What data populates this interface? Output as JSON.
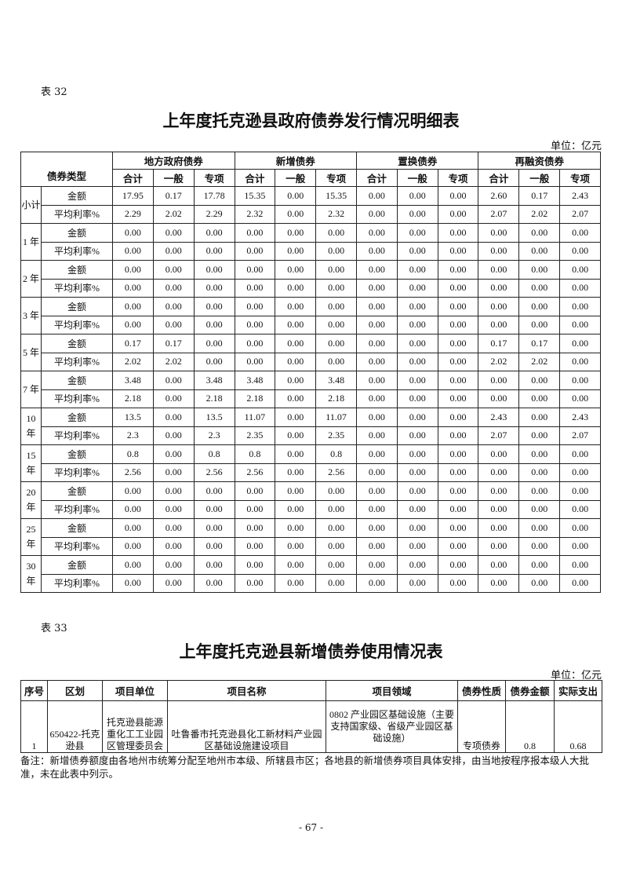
{
  "table32": {
    "label": "表 32",
    "title": "上年度托克逊县政府债券发行情况明细表",
    "unit": "单位：亿元",
    "corner": "债券类型",
    "groups": [
      "地方政府债券",
      "新增债券",
      "置换债券",
      "再融资债券"
    ],
    "subheaders": [
      "合计",
      "一般",
      "专项"
    ],
    "row_labels": [
      "金额",
      "平均利率%"
    ],
    "rows": [
      {
        "term": "小计",
        "amount": [
          "17.95",
          "0.17",
          "17.78",
          "15.35",
          "0.00",
          "15.35",
          "0.00",
          "0.00",
          "0.00",
          "2.60",
          "0.17",
          "2.43"
        ],
        "rate": [
          "2.29",
          "2.02",
          "2.29",
          "2.32",
          "0.00",
          "2.32",
          "0.00",
          "0.00",
          "0.00",
          "2.07",
          "2.02",
          "2.07"
        ]
      },
      {
        "term": "1 年",
        "amount": [
          "0.00",
          "0.00",
          "0.00",
          "0.00",
          "0.00",
          "0.00",
          "0.00",
          "0.00",
          "0.00",
          "0.00",
          "0.00",
          "0.00"
        ],
        "rate": [
          "0.00",
          "0.00",
          "0.00",
          "0.00",
          "0.00",
          "0.00",
          "0.00",
          "0.00",
          "0.00",
          "0.00",
          "0.00",
          "0.00"
        ]
      },
      {
        "term": "2 年",
        "amount": [
          "0.00",
          "0.00",
          "0.00",
          "0.00",
          "0.00",
          "0.00",
          "0.00",
          "0.00",
          "0.00",
          "0.00",
          "0.00",
          "0.00"
        ],
        "rate": [
          "0.00",
          "0.00",
          "0.00",
          "0.00",
          "0.00",
          "0.00",
          "0.00",
          "0.00",
          "0.00",
          "0.00",
          "0.00",
          "0.00"
        ]
      },
      {
        "term": "3 年",
        "amount": [
          "0.00",
          "0.00",
          "0.00",
          "0.00",
          "0.00",
          "0.00",
          "0.00",
          "0.00",
          "0.00",
          "0.00",
          "0.00",
          "0.00"
        ],
        "rate": [
          "0.00",
          "0.00",
          "0.00",
          "0.00",
          "0.00",
          "0.00",
          "0.00",
          "0.00",
          "0.00",
          "0.00",
          "0.00",
          "0.00"
        ]
      },
      {
        "term": "5 年",
        "amount": [
          "0.17",
          "0.17",
          "0.00",
          "0.00",
          "0.00",
          "0.00",
          "0.00",
          "0.00",
          "0.00",
          "0.17",
          "0.17",
          "0.00"
        ],
        "rate": [
          "2.02",
          "2.02",
          "0.00",
          "0.00",
          "0.00",
          "0.00",
          "0.00",
          "0.00",
          "0.00",
          "2.02",
          "2.02",
          "0.00"
        ]
      },
      {
        "term": "7 年",
        "amount": [
          "3.48",
          "0.00",
          "3.48",
          "3.48",
          "0.00",
          "3.48",
          "0.00",
          "0.00",
          "0.00",
          "0.00",
          "0.00",
          "0.00"
        ],
        "rate": [
          "2.18",
          "0.00",
          "2.18",
          "2.18",
          "0.00",
          "2.18",
          "0.00",
          "0.00",
          "0.00",
          "0.00",
          "0.00",
          "0.00"
        ]
      },
      {
        "term": "10 年",
        "amount": [
          "13.5",
          "0.00",
          "13.5",
          "11.07",
          "0.00",
          "11.07",
          "0.00",
          "0.00",
          "0.00",
          "2.43",
          "0.00",
          "2.43"
        ],
        "rate": [
          "2.3",
          "0.00",
          "2.3",
          "2.35",
          "0.00",
          "2.35",
          "0.00",
          "0.00",
          "0.00",
          "2.07",
          "0.00",
          "2.07"
        ]
      },
      {
        "term": "15 年",
        "amount": [
          "0.8",
          "0.00",
          "0.8",
          "0.8",
          "0.00",
          "0.8",
          "0.00",
          "0.00",
          "0.00",
          "0.00",
          "0.00",
          "0.00"
        ],
        "rate": [
          "2.56",
          "0.00",
          "2.56",
          "2.56",
          "0.00",
          "2.56",
          "0.00",
          "0.00",
          "0.00",
          "0.00",
          "0.00",
          "0.00"
        ]
      },
      {
        "term": "20 年",
        "amount": [
          "0.00",
          "0.00",
          "0.00",
          "0.00",
          "0.00",
          "0.00",
          "0.00",
          "0.00",
          "0.00",
          "0.00",
          "0.00",
          "0.00"
        ],
        "rate": [
          "0.00",
          "0.00",
          "0.00",
          "0.00",
          "0.00",
          "0.00",
          "0.00",
          "0.00",
          "0.00",
          "0.00",
          "0.00",
          "0.00"
        ]
      },
      {
        "term": "25 年",
        "amount": [
          "0.00",
          "0.00",
          "0.00",
          "0.00",
          "0.00",
          "0.00",
          "0.00",
          "0.00",
          "0.00",
          "0.00",
          "0.00",
          "0.00"
        ],
        "rate": [
          "0.00",
          "0.00",
          "0.00",
          "0.00",
          "0.00",
          "0.00",
          "0.00",
          "0.00",
          "0.00",
          "0.00",
          "0.00",
          "0.00"
        ]
      },
      {
        "term": "30 年",
        "amount": [
          "0.00",
          "0.00",
          "0.00",
          "0.00",
          "0.00",
          "0.00",
          "0.00",
          "0.00",
          "0.00",
          "0.00",
          "0.00",
          "0.00"
        ],
        "rate": [
          "0.00",
          "0.00",
          "0.00",
          "0.00",
          "0.00",
          "0.00",
          "0.00",
          "0.00",
          "0.00",
          "0.00",
          "0.00",
          "0.00"
        ]
      }
    ]
  },
  "table33": {
    "label": "表 33",
    "title": "上年度托克逊县新增债券使用情况表",
    "unit": "单位：亿元",
    "headers": [
      "序号",
      "区划",
      "项目单位",
      "项目名称",
      "项目领域",
      "债券性质",
      "债券金额",
      "实际支出"
    ],
    "rows": [
      [
        "1",
        "650422-托克逊县",
        "托克逊县能源重化工工业园区管理委员会",
        "吐鲁番市托克逊县化工新材料产业园区基础设施建设项目",
        "0802 产业园区基础设施（主要支持国家级、省级产业园区基础设施）",
        "专项债券",
        "0.8",
        "0.68"
      ]
    ],
    "note": "备注：新增债券额度由各地州市统筹分配至地州市本级、所辖县市区；各地县的新增债券项目具体安排，由当地按程序报本级人大批准，未在此表中列示。"
  },
  "page_number": "- 67 -"
}
